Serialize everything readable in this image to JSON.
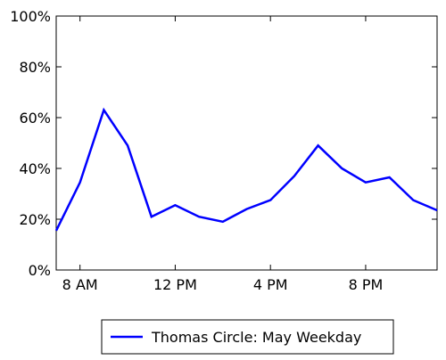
{
  "chart_data": {
    "type": "line",
    "x": [
      7,
      8,
      9,
      10,
      11,
      12,
      13,
      14,
      15,
      16,
      17,
      18,
      19,
      20,
      21,
      22,
      23
    ],
    "x_tick_values": [
      8,
      12,
      16,
      20
    ],
    "x_tick_labels": [
      "8 AM",
      "12 PM",
      "4 PM",
      "8 PM"
    ],
    "xlim": [
      7,
      23
    ],
    "y_tick_values": [
      0,
      0.2,
      0.4,
      0.6,
      0.8,
      1.0
    ],
    "y_tick_labels": [
      "0%",
      "20%",
      "40%",
      "60%",
      "80%",
      "100%"
    ],
    "ylim": [
      0,
      1.0
    ],
    "series": [
      {
        "name": "Thomas Circle: May Weekday",
        "color": "#0000ff",
        "values": [
          0.155,
          0.345,
          0.63,
          0.49,
          0.21,
          0.255,
          0.21,
          0.19,
          0.24,
          0.275,
          0.37,
          0.49,
          0.4,
          0.345,
          0.365,
          0.275,
          0.235
        ]
      }
    ],
    "grid": false,
    "legend_position": "bottom-center"
  }
}
